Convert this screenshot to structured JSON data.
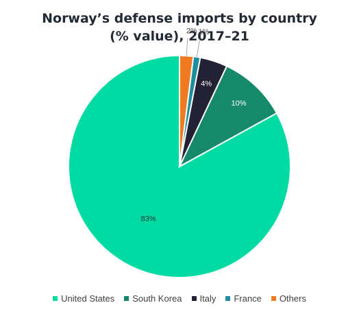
{
  "chart_data": {
    "type": "pie",
    "title_lines": [
      "Norway’s defense imports by country",
      "(% value), 2017–21"
    ],
    "categories": [
      "United States",
      "South Korea",
      "Italy",
      "France",
      "Others"
    ],
    "values": [
      83,
      10,
      4,
      1,
      2
    ],
    "labels": [
      "83%",
      "10%",
      "4%",
      "1%",
      "2%"
    ],
    "colors": [
      "#00dba4",
      "#16896b",
      "#232134",
      "#1c8ea0",
      "#f07a22"
    ],
    "legend_position": "bottom",
    "start": "top, counter-clockwise from United States"
  }
}
